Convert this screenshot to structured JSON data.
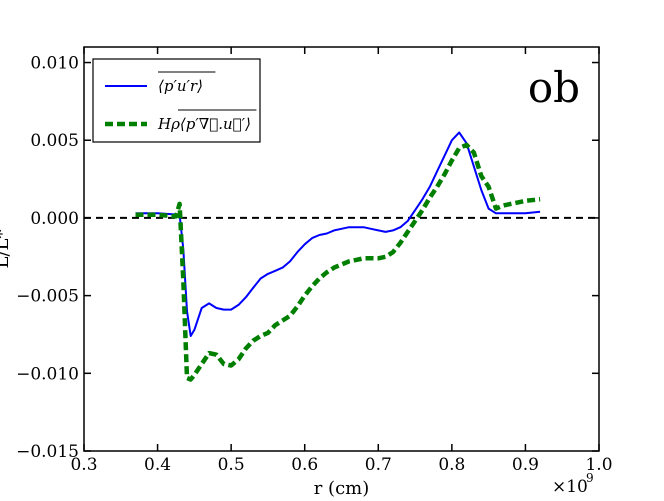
{
  "chart_data": {
    "type": "line",
    "title": "",
    "panel_label": "ob",
    "xlabel": "r (cm)",
    "x_multiplier": "×10",
    "x_multiplier_exp": "9",
    "ylabel": "L/L*",
    "xlim": [
      0.3,
      1.0
    ],
    "ylim": [
      -0.015,
      0.011
    ],
    "x_ticks": [
      0.3,
      0.4,
      0.5,
      0.6,
      0.7,
      0.8,
      0.9,
      1.0
    ],
    "x_tick_labels": [
      "0.3",
      "0.4",
      "0.5",
      "0.6",
      "0.7",
      "0.8",
      "0.9",
      "1.0"
    ],
    "y_ticks": [
      -0.015,
      -0.01,
      -0.005,
      0.0,
      0.005,
      0.01
    ],
    "y_tick_labels": [
      "−0.015",
      "−0.010",
      "−0.005",
      "0.000",
      "0.005",
      "0.010"
    ],
    "reference_line_y": 0.0,
    "grid": false,
    "legend_position": "top-left",
    "series": [
      {
        "name": "⟨p′u′r⟩",
        "color": "#0000ff",
        "style": "solid",
        "x": [
          0.37,
          0.4,
          0.43,
          0.435,
          0.44,
          0.445,
          0.45,
          0.46,
          0.47,
          0.48,
          0.49,
          0.5,
          0.51,
          0.52,
          0.53,
          0.54,
          0.55,
          0.56,
          0.57,
          0.58,
          0.59,
          0.6,
          0.61,
          0.62,
          0.63,
          0.64,
          0.65,
          0.66,
          0.67,
          0.68,
          0.69,
          0.7,
          0.71,
          0.72,
          0.73,
          0.74,
          0.75,
          0.76,
          0.77,
          0.78,
          0.79,
          0.8,
          0.81,
          0.82,
          0.83,
          0.84,
          0.85,
          0.86,
          0.87,
          0.88,
          0.89,
          0.9,
          0.92
        ],
        "y": [
          0.0003,
          0.0003,
          0.0002,
          -0.002,
          -0.006,
          -0.0076,
          -0.0072,
          -0.0058,
          -0.0055,
          -0.0058,
          -0.0059,
          -0.0059,
          -0.0056,
          -0.0051,
          -0.0045,
          -0.0039,
          -0.0036,
          -0.0034,
          -0.0032,
          -0.0028,
          -0.0022,
          -0.0017,
          -0.0013,
          -0.0011,
          -0.001,
          -0.0008,
          -0.0007,
          -0.0006,
          -0.0006,
          -0.0006,
          -0.0007,
          -0.0008,
          -0.0009,
          -0.0008,
          -0.0006,
          -0.0002,
          0.0005,
          0.0012,
          0.002,
          0.003,
          0.004,
          0.005,
          0.0055,
          0.0048,
          0.0033,
          0.0018,
          0.0006,
          0.0003,
          0.0003,
          0.0003,
          0.0003,
          0.0003,
          0.0004
        ]
      },
      {
        "name": "Hρ⟨p′∇⃗.u⃗′⟩",
        "color": "#007f00",
        "style": "dashed",
        "x": [
          0.37,
          0.4,
          0.425,
          0.43,
          0.435,
          0.44,
          0.445,
          0.45,
          0.46,
          0.47,
          0.48,
          0.49,
          0.5,
          0.51,
          0.52,
          0.53,
          0.54,
          0.55,
          0.56,
          0.57,
          0.58,
          0.59,
          0.6,
          0.61,
          0.62,
          0.63,
          0.64,
          0.65,
          0.66,
          0.67,
          0.68,
          0.69,
          0.7,
          0.71,
          0.72,
          0.73,
          0.74,
          0.75,
          0.76,
          0.77,
          0.78,
          0.79,
          0.8,
          0.81,
          0.82,
          0.83,
          0.84,
          0.85,
          0.86,
          0.87,
          0.88,
          0.89,
          0.9,
          0.92
        ],
        "y": [
          0.0002,
          0.0002,
          0.0001,
          0.0009,
          -0.004,
          -0.0103,
          -0.0104,
          -0.0101,
          -0.0094,
          -0.0087,
          -0.0088,
          -0.0094,
          -0.0095,
          -0.0091,
          -0.0084,
          -0.0079,
          -0.0076,
          -0.0074,
          -0.0069,
          -0.0066,
          -0.0063,
          -0.0057,
          -0.005,
          -0.0044,
          -0.0039,
          -0.0035,
          -0.0032,
          -0.003,
          -0.0028,
          -0.0027,
          -0.0026,
          -0.0026,
          -0.0026,
          -0.0025,
          -0.0022,
          -0.0016,
          -0.0009,
          -0.0002,
          0.0005,
          0.0013,
          0.002,
          0.0028,
          0.0037,
          0.0045,
          0.0047,
          0.0042,
          0.0027,
          0.002,
          0.0006,
          0.0008,
          0.0009,
          0.001,
          0.0011,
          0.0012
        ]
      }
    ]
  }
}
